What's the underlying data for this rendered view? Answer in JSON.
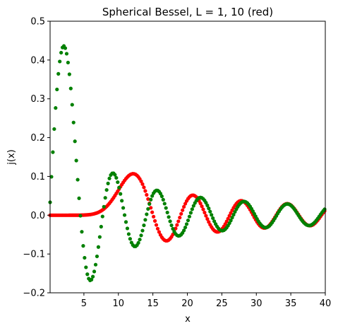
{
  "chart_data": {
    "type": "scatter",
    "title": "Spherical Bessel, L = 1, 10 (red)",
    "xlabel": "x",
    "ylabel": "j(x)",
    "xlim": [
      0.1,
      40
    ],
    "ylim": [
      -0.2,
      0.5
    ],
    "grid": false,
    "x_ticks": [
      5,
      10,
      15,
      20,
      25,
      30,
      35,
      40
    ],
    "x_tick_labels": [
      "5",
      "10",
      "15",
      "20",
      "25",
      "30",
      "35",
      "40"
    ],
    "y_ticks": [
      -0.2,
      -0.1,
      0.0,
      0.1,
      0.2,
      0.3,
      0.4,
      0.5
    ],
    "y_tick_labels": [
      "−0.2",
      "−0.1",
      "0.0",
      "0.1",
      "0.2",
      "0.3",
      "0.4",
      "0.5"
    ],
    "x": {
      "start": 0.1,
      "end": 40,
      "step": 0.2
    },
    "series": [
      {
        "order": 10,
        "function": "spherical_jn",
        "color": "#ff0000"
      },
      {
        "order": 1,
        "function": "spherical_jn",
        "color": "#008000"
      }
    ]
  }
}
